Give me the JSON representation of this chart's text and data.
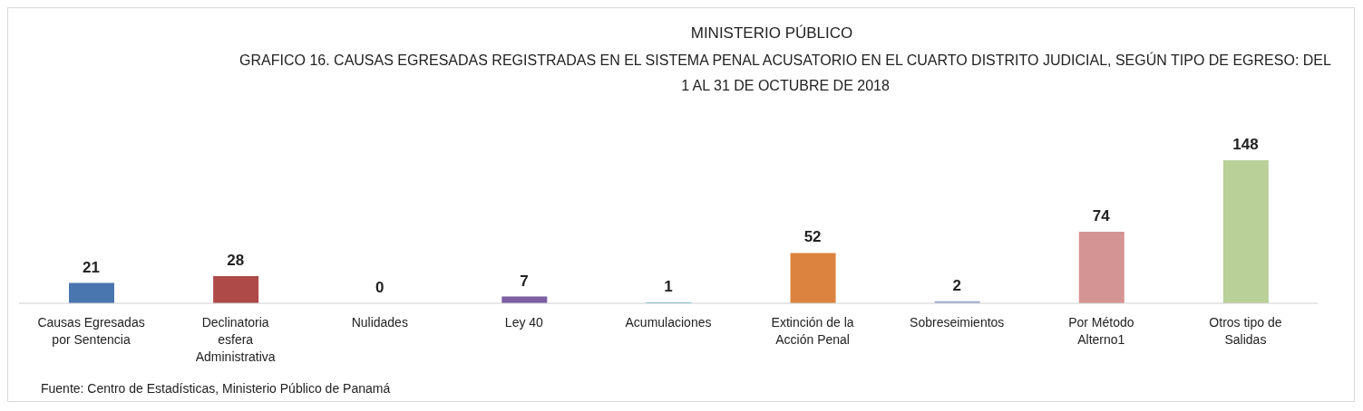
{
  "chart_data": {
    "type": "bar",
    "title": "MINISTERIO PÚBLICO",
    "subtitle": "GRAFICO 16. CAUSAS EGRESADAS REGISTRADAS EN EL SISTEMA PENAL ACUSATORIO EN EL CUARTO DISTRITO JUDICIAL, SEGÚN TIPO DE EGRESO: DEL 1 AL 31 DE OCTUBRE DE  2018",
    "categories": [
      "Causas Egresadas por Sentencia",
      "Declinatoria esfera Administrativa",
      "Nulidades",
      "Ley 40",
      "Acumulaciones",
      "Extinción de la Acción Penal",
      "Sobreseimientos",
      "Por Método Alterno1",
      "Otros tipo de Salidas"
    ],
    "values": [
      21,
      28,
      0,
      7,
      1,
      52,
      2,
      74,
      148
    ],
    "colors": [
      "#4a76b0",
      "#ae4a47",
      "#9bbb59",
      "#7b5fa0",
      "#4bacc6",
      "#dc843f",
      "#9aa9d0",
      "#d49493",
      "#b9d098"
    ],
    "data_labels": true,
    "grid": false,
    "legend": false,
    "annotations": [
      "Fuente: Centro de Estadísticas, Ministerio Público de Panamá"
    ]
  }
}
